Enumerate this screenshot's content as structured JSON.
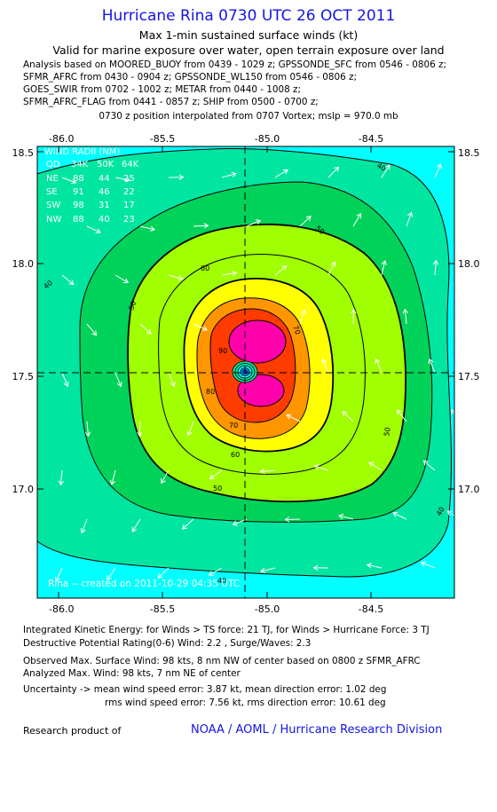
{
  "header": {
    "title": "Hurricane Rina 0730 UTC 26 OCT 2011",
    "subtitle1": "Max 1-min sustained surface winds (kt)",
    "subtitle2": "Valid for marine exposure over water, open terrain exposure over land",
    "analysis_lines": [
      "Analysis based on MOORED_BUOY from 0439 - 1029 z; GPSSONDE_SFC from 0546 - 0806 z;",
      "SFMR_AFRC from 0430 - 0904 z; GPSSONDE_WL150 from 0546 - 0806 z;",
      "GOES_SWIR from 0702 - 1002 z; METAR from 0440 - 1008 z;",
      "SFMR_AFRC_FLAG from 0441 - 0857 z; SHIP from 0500 - 0700 z;"
    ],
    "position_note": "0730 z position interpolated from 0707 Vortex; mslp = 970.0 mb"
  },
  "chart_data": {
    "type": "contour",
    "title": "Hurricane Rina 0730 UTC 26 OCT 2011",
    "variable": "Max 1-min sustained surface winds (kt)",
    "x_ticks": [
      "-86.0",
      "-85.5",
      "-85.0",
      "-84.5"
    ],
    "y_ticks": [
      "18.5",
      "18.0",
      "17.5",
      "17.0"
    ],
    "xlim": [
      -86.15,
      -84.03
    ],
    "ylim": [
      16.5,
      18.52
    ],
    "center": {
      "lon": -85.05,
      "lat": 17.52
    },
    "contour_levels": [
      40,
      50,
      60,
      70,
      80,
      90
    ],
    "contour_labels": [
      "40",
      "50",
      "60",
      "70",
      "80",
      "90"
    ],
    "wind_radii": {
      "title": "WIND RADII (NM)",
      "columns": [
        "QD",
        "34K",
        "50K",
        "64K"
      ],
      "rows": [
        [
          "NE",
          "88",
          "44",
          "25"
        ],
        [
          "SE",
          "91",
          "46",
          "22"
        ],
        [
          "SW",
          "98",
          "31",
          "17"
        ],
        [
          "NW",
          "88",
          "40",
          "23"
        ]
      ]
    },
    "created_note": "Rina -- created on 2011-10-29 04:35 UTC",
    "colors": {
      "lt40": "#00ffff",
      "c40": "#00e6a0",
      "c50": "#00d25a",
      "c60": "#a0ff00",
      "c70": "#ffff00",
      "c80": "#ff9600",
      "c90": "#ff3c00",
      "c100": "#ff00aa",
      "title": "#1414e6"
    }
  },
  "summary": {
    "ike": "Integrated Kinetic Energy:  for Winds > TS force: 21 TJ,  for Winds > Hurricane Force: 3 TJ",
    "dpr": "Destructive Potential Rating(0-6)  Wind: 2.2 , Surge/Waves: 2.3",
    "observed": "Observed Max. Surface Wind: 98 kts, 8 nm NW of center based on 0800 z SFMR_AFRC",
    "analyzed": "Analyzed Max. Wind: 98 kts, 7 nm NE of center",
    "uncertainty1": "Uncertainty -> mean wind speed error: 3.87 kt,   mean direction error: 1.02 deg",
    "uncertainty2": "rms wind speed error: 7.56 kt,   rms direction error: 10.61 deg"
  },
  "footer": {
    "research": "Research product of",
    "org": "NOAA / AOML / Hurricane Research Division"
  }
}
